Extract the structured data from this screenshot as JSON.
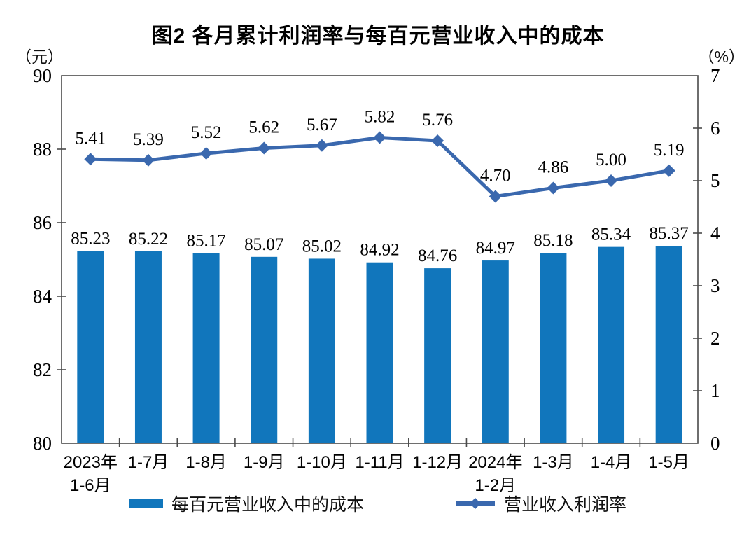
{
  "title": "图2  各月累计利润率与每百元营业收入中的成本",
  "chart_data": {
    "type": "bar+line combo",
    "grid": false,
    "legend_position": "bottom",
    "categories": [
      [
        "2023年",
        "1-6月"
      ],
      [
        "1-7月"
      ],
      [
        "1-8月"
      ],
      [
        "1-9月"
      ],
      [
        "1-10月"
      ],
      [
        "1-11月"
      ],
      [
        "1-12月"
      ],
      [
        "2024年",
        "1-2月"
      ],
      [
        "1-3月"
      ],
      [
        "1-4月"
      ],
      [
        "1-5月"
      ]
    ],
    "series": [
      {
        "name": "每百元营业收入中的成本",
        "type": "bar",
        "axis": "left",
        "color": "#1176BC",
        "values": [
          85.23,
          85.22,
          85.17,
          85.07,
          85.02,
          84.92,
          84.76,
          84.97,
          85.18,
          85.34,
          85.37
        ]
      },
      {
        "name": "营业收入利润率",
        "type": "line",
        "axis": "right",
        "color": "#3A68AE",
        "values": [
          5.41,
          5.39,
          5.52,
          5.62,
          5.67,
          5.82,
          5.76,
          4.7,
          4.86,
          5.0,
          5.19
        ]
      }
    ],
    "axes": {
      "left": {
        "unit": "（元）",
        "min": 80,
        "max": 90,
        "step": 2
      },
      "right": {
        "unit": "（%）",
        "min": 0,
        "max": 7,
        "step": 1
      }
    },
    "value_label_decimals": 2,
    "axis_color": "#4a4a4a"
  }
}
